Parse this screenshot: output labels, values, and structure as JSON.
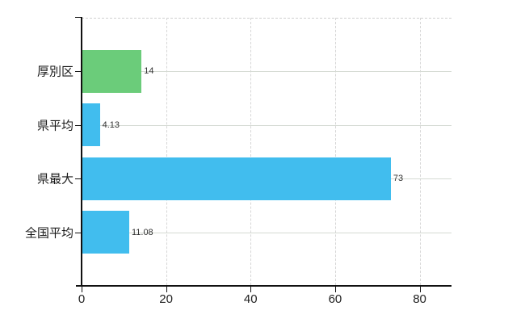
{
  "chart_data": {
    "type": "bar",
    "orientation": "horizontal",
    "title": "",
    "categories": [
      "厚別区",
      "県平均",
      "県最大",
      "全国平均"
    ],
    "values": [
      14,
      4.13,
      73,
      11.08
    ],
    "value_labels": [
      "14",
      "4.13",
      "73",
      "11.08"
    ],
    "bar_colors": [
      "#6bcc7a",
      "#41bdee",
      "#41bdee",
      "#41bdee"
    ],
    "x_axis": {
      "ticks": [
        0,
        20,
        40,
        60,
        80
      ],
      "tick_labels": [
        "0",
        "20",
        "40",
        "60",
        "80"
      ],
      "min": 0,
      "max": 87.5
    },
    "grid": {
      "vertical_style": "dashed",
      "horizontal_style": "solid",
      "top_border_style": "dashed"
    },
    "legend": "none",
    "colors": {
      "highlight_bar": "#6bcc7a",
      "default_bar": "#41bdee",
      "axis": "#111111",
      "gridline": "#d6d6d6",
      "background": "#ffffff"
    }
  }
}
